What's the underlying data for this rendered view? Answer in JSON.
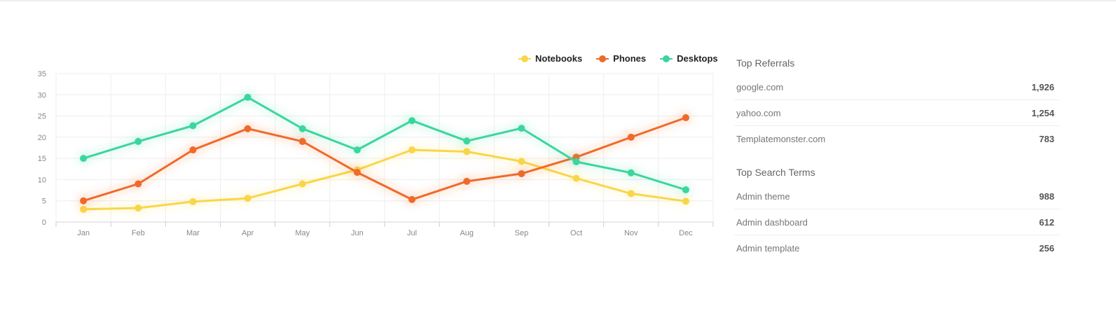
{
  "chart_data": {
    "type": "line",
    "categories": [
      "Jan",
      "Feb",
      "Mar",
      "Apr",
      "May",
      "Jun",
      "Jul",
      "Aug",
      "Sep",
      "Oct",
      "Nov",
      "Dec"
    ],
    "ylim": [
      0,
      35
    ],
    "yticks": [
      0,
      5,
      10,
      15,
      20,
      25,
      30,
      35
    ],
    "grid": true,
    "legend_position": "top-right",
    "series": [
      {
        "name": "Notebooks",
        "color": "#f9d648",
        "values": [
          3,
          3.3,
          4.8,
          5.6,
          9,
          12.3,
          17,
          16.6,
          14.3,
          10.3,
          6.7,
          4.9
        ]
      },
      {
        "name": "Phones",
        "color": "#ef6a2a",
        "values": [
          5,
          9,
          17,
          22,
          19,
          11.7,
          5.3,
          9.6,
          11.4,
          15.3,
          20,
          24.6
        ]
      },
      {
        "name": "Desktops",
        "color": "#3ad69e",
        "values": [
          15,
          19,
          22.7,
          29.4,
          22,
          17,
          23.9,
          19.1,
          22.1,
          14.2,
          11.6,
          7.6
        ]
      }
    ]
  },
  "referrals": {
    "title": "Top Referrals",
    "items": [
      {
        "label": "google.com",
        "value": "1,926"
      },
      {
        "label": "yahoo.com",
        "value": "1,254"
      },
      {
        "label": "Templatemonster.com",
        "value": "783"
      }
    ]
  },
  "search_terms": {
    "title": "Top Search Terms",
    "items": [
      {
        "label": "Admin theme",
        "value": "988"
      },
      {
        "label": "Admin dashboard",
        "value": "612"
      },
      {
        "label": "Admin template",
        "value": "256"
      }
    ]
  }
}
